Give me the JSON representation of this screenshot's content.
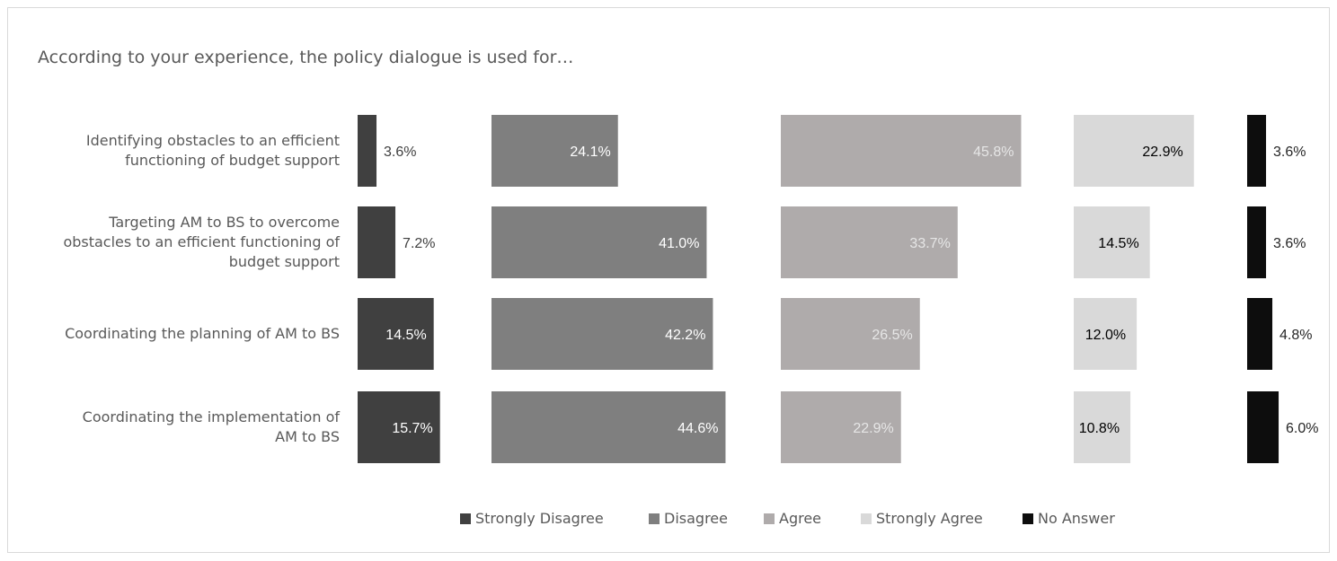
{
  "chart_data": {
    "type": "bar",
    "title": "According to your experience, the policy dialogue is used for…",
    "categories": [
      [
        "Identifying obstacles to an efficient",
        "functioning of budget support"
      ],
      [
        "Targeting AM to BS to overcome",
        "obstacles to an efficient functioning of",
        "budget support"
      ],
      [
        "Coordinating the planning of AM to BS"
      ],
      [
        "Coordinating the implementation of",
        "AM to BS"
      ]
    ],
    "series": [
      {
        "name": "Strongly Disagree",
        "color": "#404040",
        "label_color": "#404040",
        "label_color_inside": "#ffffff",
        "values": [
          3.6,
          7.2,
          14.5,
          15.7
        ],
        "labels": [
          "3.6%",
          "7.2%",
          "14.5%",
          "15.7%"
        ]
      },
      {
        "name": "Disagree",
        "color": "#7f7f7f",
        "label_color": "#ffffff",
        "label_color_inside": "#ffffff",
        "values": [
          24.1,
          41.0,
          42.2,
          44.6
        ],
        "labels": [
          "24.1%",
          "41.0%",
          "42.2%",
          "44.6%"
        ]
      },
      {
        "name": "Agree",
        "color": "#afabab",
        "label_color": "#e6e6e6",
        "label_color_inside": "#e6e6e6",
        "values": [
          45.8,
          33.7,
          26.5,
          22.9
        ],
        "labels": [
          "45.8%",
          "33.7%",
          "26.5%",
          "22.9%"
        ]
      },
      {
        "name": "Strongly Agree",
        "color": "#d9d9d9",
        "label_color": "#000000",
        "label_color_inside": "#000000",
        "values": [
          22.9,
          14.5,
          12.0,
          10.8
        ],
        "labels": [
          "22.9%",
          "14.5%",
          "12.0%",
          "10.8%"
        ]
      },
      {
        "name": "No Answer",
        "color": "#0d0d0d",
        "label_color": "#262626",
        "label_color_inside": "#ffffff",
        "values": [
          3.6,
          3.6,
          4.8,
          6.0
        ],
        "labels": [
          "3.6%",
          "3.6%",
          "4.8%",
          "6.0%"
        ]
      }
    ],
    "legend_position": "bottom"
  }
}
